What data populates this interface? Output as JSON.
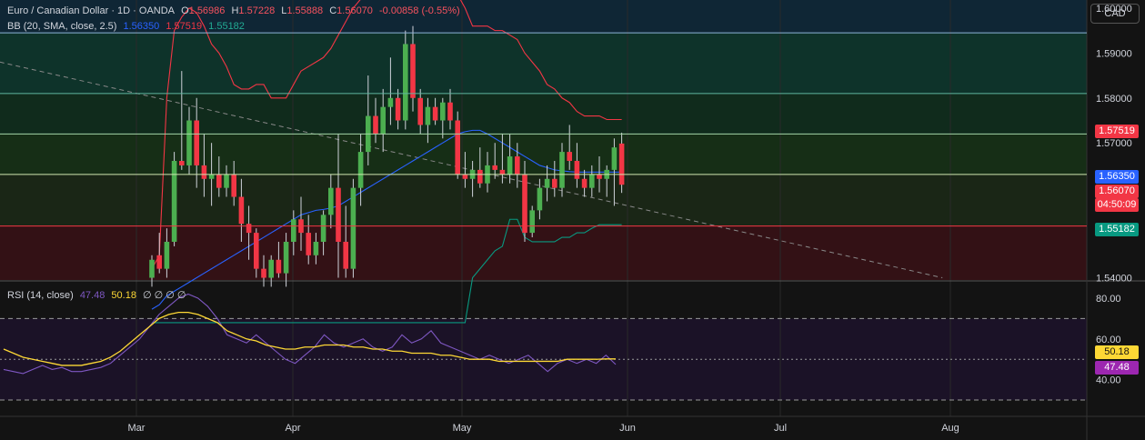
{
  "header": {
    "title": "Euro / Canadian Dollar · 1D · OANDA",
    "o_label": "O",
    "o": "1.56986",
    "h_label": "H",
    "h": "1.57228",
    "l_label": "L",
    "l": "1.55888",
    "c_label": "C",
    "c": "1.56070",
    "change": "-0.00858 (-0.55%)"
  },
  "bb_legend": {
    "label": "BB (20, SMA, close, 2.5)",
    "basis": "1.56350",
    "upper": "1.57519",
    "lower": "1.55182"
  },
  "rsi_legend": {
    "label": "RSI (14, close)",
    "rsi": "47.48",
    "ma": "50.18",
    "extra": "∅ ∅ ∅ ∅"
  },
  "currency_button": "CAD",
  "price_axis": {
    "labels": [
      "1.60000",
      "1.59000",
      "1.58000",
      "1.57000",
      "1.56000",
      "1.55000",
      "1.54000"
    ]
  },
  "rsi_axis": {
    "labels": [
      "80.00",
      "60.00",
      "40.00"
    ]
  },
  "price_tags": {
    "upper": "1.57519",
    "basis": "1.56350",
    "last": "1.56070",
    "countdown": "04:50:09",
    "lower": "1.55182"
  },
  "rsi_tags": {
    "ma": "50.18",
    "rsi": "47.48"
  },
  "time_axis": {
    "labels": [
      "Mar",
      "Apr",
      "May",
      "Jun",
      "Jul",
      "Aug"
    ]
  },
  "colors": {
    "up": "#4caf50",
    "down": "#f23645",
    "bb_upper": "#f23645",
    "bb_basis": "#2962ff",
    "bb_lower": "#089981",
    "rsi": "#7e57c2",
    "rsi_ma": "#fdd835",
    "background": "#131313"
  },
  "chart_data": {
    "type": "candlestick",
    "symbol": "Euro / Canadian Dollar",
    "interval": "1D",
    "ylim": [
      1.5395,
      1.6018
    ],
    "bars": [
      [
        1.54,
        1.545,
        1.538,
        1.544
      ],
      [
        1.545,
        1.55,
        1.541,
        1.542
      ],
      [
        1.542,
        1.551,
        1.54,
        1.548
      ],
      [
        1.548,
        1.568,
        1.547,
        1.566
      ],
      [
        1.566,
        1.586,
        1.564,
        1.565
      ],
      [
        1.565,
        1.578,
        1.563,
        1.575
      ],
      [
        1.575,
        1.58,
        1.56,
        1.565
      ],
      [
        1.565,
        1.572,
        1.558,
        1.562
      ],
      [
        1.562,
        1.57,
        1.556,
        1.563
      ],
      [
        1.563,
        1.567,
        1.558,
        1.56
      ],
      [
        1.56,
        1.565,
        1.558,
        1.563
      ],
      [
        1.563,
        1.566,
        1.556,
        1.558
      ],
      [
        1.558,
        1.562,
        1.548,
        1.552
      ],
      [
        1.552,
        1.556,
        1.544,
        1.55
      ],
      [
        1.55,
        1.551,
        1.54,
        1.542
      ],
      [
        1.542,
        1.545,
        1.538,
        1.54
      ],
      [
        1.54,
        1.545,
        1.538,
        1.544
      ],
      [
        1.544,
        1.548,
        1.54,
        1.541
      ],
      [
        1.541,
        1.55,
        1.538,
        1.548
      ],
      [
        1.548,
        1.555,
        1.545,
        1.553
      ],
      [
        1.553,
        1.558,
        1.546,
        1.55
      ],
      [
        1.55,
        1.554,
        1.543,
        1.545
      ],
      [
        1.545,
        1.55,
        1.543,
        1.548
      ],
      [
        1.548,
        1.555,
        1.545,
        1.554
      ],
      [
        1.554,
        1.563,
        1.551,
        1.56
      ],
      [
        1.56,
        1.572,
        1.54,
        1.548
      ],
      [
        1.548,
        1.556,
        1.54,
        1.542
      ],
      [
        1.542,
        1.562,
        1.54,
        1.56
      ],
      [
        1.56,
        1.572,
        1.556,
        1.568
      ],
      [
        1.568,
        1.585,
        1.565,
        1.576
      ],
      [
        1.576,
        1.58,
        1.57,
        1.572
      ],
      [
        1.572,
        1.582,
        1.568,
        1.578
      ],
      [
        1.578,
        1.589,
        1.574,
        1.58
      ],
      [
        1.58,
        1.582,
        1.573,
        1.575
      ],
      [
        1.575,
        1.595,
        1.573,
        1.592
      ],
      [
        1.592,
        1.596,
        1.577,
        1.58
      ],
      [
        1.58,
        1.582,
        1.572,
        1.574
      ],
      [
        1.574,
        1.58,
        1.57,
        1.578
      ],
      [
        1.578,
        1.58,
        1.574,
        1.575
      ],
      [
        1.575,
        1.58,
        1.571,
        1.579
      ],
      [
        1.579,
        1.582,
        1.573,
        1.575
      ],
      [
        1.575,
        1.577,
        1.562,
        1.563
      ],
      [
        1.563,
        1.568,
        1.56,
        1.562
      ],
      [
        1.562,
        1.566,
        1.558,
        1.564
      ],
      [
        1.564,
        1.569,
        1.56,
        1.561
      ],
      [
        1.561,
        1.568,
        1.559,
        1.565
      ],
      [
        1.565,
        1.57,
        1.562,
        1.564
      ],
      [
        1.564,
        1.572,
        1.561,
        1.563
      ],
      [
        1.563,
        1.572,
        1.561,
        1.567
      ],
      [
        1.567,
        1.57,
        1.56,
        1.563
      ],
      [
        1.563,
        1.566,
        1.548,
        1.55
      ],
      [
        1.55,
        1.556,
        1.549,
        1.555
      ],
      [
        1.555,
        1.562,
        1.553,
        1.56
      ],
      [
        1.56,
        1.565,
        1.557,
        1.562
      ],
      [
        1.562,
        1.566,
        1.558,
        1.56
      ],
      [
        1.56,
        1.57,
        1.558,
        1.568
      ],
      [
        1.568,
        1.574,
        1.564,
        1.566
      ],
      [
        1.566,
        1.57,
        1.56,
        1.562
      ],
      [
        1.562,
        1.564,
        1.558,
        1.56
      ],
      [
        1.56,
        1.565,
        1.558,
        1.563
      ],
      [
        1.563,
        1.567,
        1.559,
        1.562
      ],
      [
        1.562,
        1.565,
        1.558,
        1.564
      ],
      [
        1.564,
        1.571,
        1.556,
        1.569
      ],
      [
        1.56986,
        1.57228,
        1.55888,
        1.5607
      ]
    ],
    "bb_upper": [
      1.542,
      1.545,
      1.58,
      1.595,
      1.598,
      1.6,
      1.599,
      1.596,
      1.592,
      1.59,
      1.587,
      1.583,
      1.582,
      1.582,
      1.583,
      1.583,
      1.58,
      1.58,
      1.58,
      1.583,
      1.586,
      1.587,
      1.588,
      1.589,
      1.591,
      1.594,
      1.597,
      1.6,
      1.602,
      1.604,
      1.607,
      1.609,
      1.611,
      1.612,
      1.613,
      1.613,
      1.612,
      1.611,
      1.61,
      1.609,
      1.607,
      1.603,
      1.6,
      1.596,
      1.596,
      1.596,
      1.595,
      1.595,
      1.594,
      1.593,
      1.59,
      1.588,
      1.586,
      1.583,
      1.582,
      1.58,
      1.579,
      1.577,
      1.576,
      1.576,
      1.576,
      1.5752,
      1.5752,
      1.5752
    ],
    "bb_basis": [
      1.533,
      1.534,
      1.536,
      1.537,
      1.538,
      1.539,
      1.54,
      1.541,
      1.542,
      1.543,
      1.544,
      1.545,
      1.546,
      1.547,
      1.548,
      1.549,
      1.55,
      1.551,
      1.552,
      1.553,
      1.554,
      1.5545,
      1.555,
      1.5552,
      1.5555,
      1.556,
      1.557,
      1.558,
      1.559,
      1.56,
      1.561,
      1.562,
      1.563,
      1.564,
      1.565,
      1.566,
      1.567,
      1.568,
      1.569,
      1.57,
      1.571,
      1.572,
      1.5725,
      1.5728,
      1.5728,
      1.572,
      1.571,
      1.57,
      1.569,
      1.568,
      1.567,
      1.566,
      1.565,
      1.5645,
      1.564,
      1.5638,
      1.5636,
      1.5635,
      1.5635,
      1.5635,
      1.5635,
      1.5635,
      1.5635,
      1.5635
    ],
    "bb_lower": [
      1.53,
      1.53,
      1.53,
      1.53,
      1.53,
      1.53,
      1.53,
      1.53,
      1.53,
      1.53,
      1.53,
      1.53,
      1.53,
      1.53,
      1.53,
      1.53,
      1.53,
      1.53,
      1.53,
      1.53,
      1.53,
      1.53,
      1.53,
      1.53,
      1.53,
      1.53,
      1.53,
      1.53,
      1.53,
      1.53,
      1.53,
      1.53,
      1.53,
      1.53,
      1.53,
      1.53,
      1.53,
      1.53,
      1.53,
      1.53,
      1.53,
      1.53,
      1.53,
      1.54,
      1.542,
      1.544,
      1.546,
      1.547,
      1.553,
      1.553,
      1.549,
      1.548,
      1.548,
      1.548,
      1.548,
      1.549,
      1.549,
      1.55,
      1.55,
      1.551,
      1.5518,
      1.5518,
      1.5518,
      1.5518
    ],
    "rsi": [
      45,
      44,
      43,
      45,
      47,
      45,
      46,
      44,
      44,
      45,
      46,
      48,
      52,
      56,
      60,
      66,
      72,
      76,
      80,
      82,
      80,
      76,
      70,
      62,
      60,
      58,
      62,
      58,
      54,
      50,
      48,
      52,
      56,
      62,
      58,
      56,
      58,
      60,
      56,
      54,
      56,
      62,
      58,
      60,
      64,
      58,
      56,
      54,
      52,
      50,
      52,
      50,
      48,
      50,
      52,
      48,
      44,
      48,
      50,
      48,
      50,
      48,
      52,
      47.48
    ],
    "rsi_ma": [
      55,
      53,
      51,
      50,
      49,
      48,
      47,
      47,
      47,
      48,
      49,
      51,
      54,
      58,
      62,
      66,
      70,
      72,
      73,
      73,
      72,
      70,
      68,
      64,
      62,
      60,
      59,
      57,
      56,
      55,
      55,
      56,
      56,
      57,
      57,
      57,
      56,
      56,
      55,
      55,
      54,
      54,
      53,
      53,
      53,
      52,
      52,
      51,
      50,
      50,
      50,
      49,
      49,
      49,
      49,
      49,
      49,
      49,
      50,
      50,
      50,
      50,
      50.18,
      50.18
    ],
    "rsi_ylim": [
      22,
      88
    ],
    "rsi_levels": [
      70,
      50,
      30
    ],
    "horizontal_lines": [
      1.5945,
      1.581,
      1.572,
      1.563,
      1.5515
    ],
    "trendline": {
      "from": [
        1.588,
        0
      ],
      "to": [
        1.54,
        76
      ]
    }
  }
}
